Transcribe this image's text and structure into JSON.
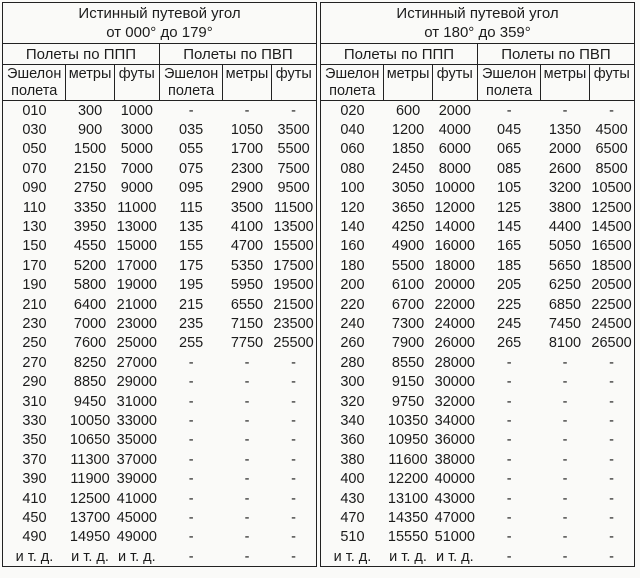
{
  "colors": {
    "background": "#fafaf8",
    "border": "#222222",
    "text": "#1c1c1c"
  },
  "halves": [
    {
      "title_line1": "Истинный путевой угол",
      "title_line2": "от 000° до 179°",
      "groups": [
        "Полеты по ППП",
        "Полеты по ПВП"
      ],
      "subheaders": [
        "Эшелон полета",
        "метры",
        "футы",
        "Эшелон полета",
        "метры",
        "футы"
      ],
      "rows": [
        [
          "010",
          "300",
          "1000",
          "-",
          "-",
          "-"
        ],
        [
          "030",
          "900",
          "3000",
          "035",
          "1050",
          "3500"
        ],
        [
          "050",
          "1500",
          "5000",
          "055",
          "1700",
          "5500"
        ],
        [
          "070",
          "2150",
          "7000",
          "075",
          "2300",
          "7500"
        ],
        [
          "090",
          "2750",
          "9000",
          "095",
          "2900",
          "9500"
        ],
        [
          "110",
          "3350",
          "11000",
          "115",
          "3500",
          "11500"
        ],
        [
          "130",
          "3950",
          "13000",
          "135",
          "4100",
          "13500"
        ],
        [
          "150",
          "4550",
          "15000",
          "155",
          "4700",
          "15500"
        ],
        [
          "170",
          "5200",
          "17000",
          "175",
          "5350",
          "17500"
        ],
        [
          "190",
          "5800",
          "19000",
          "195",
          "5950",
          "19500"
        ],
        [
          "210",
          "6400",
          "21000",
          "215",
          "6550",
          "21500"
        ],
        [
          "230",
          "7000",
          "23000",
          "235",
          "7150",
          "23500"
        ],
        [
          "250",
          "7600",
          "25000",
          "255",
          "7750",
          "25500"
        ],
        [
          "270",
          "8250",
          "27000",
          "-",
          "-",
          "-"
        ],
        [
          "290",
          "8850",
          "29000",
          "-",
          "-",
          "-"
        ],
        [
          "310",
          "9450",
          "31000",
          "-",
          "-",
          "-"
        ],
        [
          "330",
          "10050",
          "33000",
          "-",
          "-",
          "-"
        ],
        [
          "350",
          "10650",
          "35000",
          "-",
          "-",
          "-"
        ],
        [
          "370",
          "11300",
          "37000",
          "-",
          "-",
          "-"
        ],
        [
          "390",
          "11900",
          "39000",
          "-",
          "-",
          "-"
        ],
        [
          "410",
          "12500",
          "41000",
          "-",
          "-",
          "-"
        ],
        [
          "450",
          "13700",
          "45000",
          "-",
          "-",
          "-"
        ],
        [
          "490",
          "14950",
          "49000",
          "-",
          "-",
          "-"
        ],
        [
          "и т. д.",
          "и т. д.",
          "и т. д.",
          "-",
          "-",
          "-"
        ]
      ]
    },
    {
      "title_line1": "Истинный путевой угол",
      "title_line2": "от 180° до 359°",
      "groups": [
        "Полеты по ППП",
        "Полеты по ПВП"
      ],
      "subheaders": [
        "Эшелон полета",
        "метры",
        "футы",
        "Эшелон полета",
        "метры",
        "футы"
      ],
      "rows": [
        [
          "020",
          "600",
          "2000",
          "-",
          "-",
          "-"
        ],
        [
          "040",
          "1200",
          "4000",
          "045",
          "1350",
          "4500"
        ],
        [
          "060",
          "1850",
          "6000",
          "065",
          "2000",
          "6500"
        ],
        [
          "080",
          "2450",
          "8000",
          "085",
          "2600",
          "8500"
        ],
        [
          "100",
          "3050",
          "10000",
          "105",
          "3200",
          "10500"
        ],
        [
          "120",
          "3650",
          "12000",
          "125",
          "3800",
          "12500"
        ],
        [
          "140",
          "4250",
          "14000",
          "145",
          "4400",
          "14500"
        ],
        [
          "160",
          "4900",
          "16000",
          "165",
          "5050",
          "16500"
        ],
        [
          "180",
          "5500",
          "18000",
          "185",
          "5650",
          "18500"
        ],
        [
          "200",
          "6100",
          "20000",
          "205",
          "6250",
          "20500"
        ],
        [
          "220",
          "6700",
          "22000",
          "225",
          "6850",
          "22500"
        ],
        [
          "240",
          "7300",
          "24000",
          "245",
          "7450",
          "24500"
        ],
        [
          "260",
          "7900",
          "26000",
          "265",
          "8100",
          "26500"
        ],
        [
          "280",
          "8550",
          "28000",
          "-",
          "-",
          "-"
        ],
        [
          "300",
          "9150",
          "30000",
          "-",
          "-",
          "-"
        ],
        [
          "320",
          "9750",
          "32000",
          "-",
          "-",
          "-"
        ],
        [
          "340",
          "10350",
          "34000",
          "-",
          "-",
          "-"
        ],
        [
          "360",
          "10950",
          "36000",
          "-",
          "-",
          "-"
        ],
        [
          "380",
          "11600",
          "38000",
          "-",
          "-",
          "-"
        ],
        [
          "400",
          "12200",
          "40000",
          "-",
          "-",
          "-"
        ],
        [
          "430",
          "13100",
          "43000",
          "-",
          "-",
          "-"
        ],
        [
          "470",
          "14350",
          "47000",
          "-",
          "-",
          "-"
        ],
        [
          "510",
          "15550",
          "51000",
          "-",
          "-",
          "-"
        ],
        [
          "и т. д.",
          "и т. д.",
          "и т. д.",
          "-",
          "-",
          "-"
        ]
      ]
    }
  ]
}
